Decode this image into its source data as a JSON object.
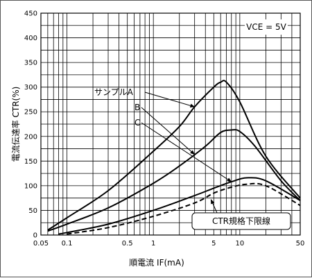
{
  "chart_data": {
    "type": "line",
    "x_scale": "log",
    "xlim": [
      0.05,
      50
    ],
    "ylim": [
      0,
      450
    ],
    "grid": true,
    "xlabel": "順電流 IF(mA)",
    "ylabel": "電流伝達率 CTR(%)",
    "x_ticks": [
      {
        "value": 0.05,
        "label": "0.05"
      },
      {
        "value": 0.1,
        "label": "0.1"
      },
      {
        "value": 0.5,
        "label": "0.5"
      },
      {
        "value": 1,
        "label": "1"
      },
      {
        "value": 5,
        "label": "5"
      },
      {
        "value": 10,
        "label": "10"
      },
      {
        "value": 50,
        "label": "50"
      }
    ],
    "y_ticks": [
      {
        "value": 0,
        "label": "0"
      },
      {
        "value": 50,
        "label": "50"
      },
      {
        "value": 100,
        "label": "100"
      },
      {
        "value": 150,
        "label": "150"
      },
      {
        "value": 200,
        "label": "200"
      },
      {
        "value": 250,
        "label": "250"
      },
      {
        "value": 300,
        "label": "300"
      },
      {
        "value": 350,
        "label": "350"
      },
      {
        "value": 400,
        "label": "400"
      },
      {
        "value": 450,
        "label": "450"
      }
    ],
    "condition_label": "VCE = 5V",
    "series": [
      {
        "name": "サンプルA",
        "style": "solid",
        "x": [
          0.06,
          0.1,
          0.3,
          1,
          2,
          3,
          5,
          6,
          7,
          10,
          20,
          50
        ],
        "y": [
          10,
          35,
          90,
          170,
          220,
          260,
          300,
          310,
          310,
          270,
          160,
          75
        ]
      },
      {
        "name": "B",
        "style": "solid",
        "x": [
          0.06,
          0.1,
          0.3,
          1,
          2,
          4,
          6,
          8,
          10,
          15,
          30,
          50
        ],
        "y": [
          8,
          22,
          55,
          105,
          140,
          180,
          208,
          213,
          210,
          180,
          110,
          70
        ]
      },
      {
        "name": "C",
        "style": "solid",
        "x": [
          0.08,
          0.1,
          0.3,
          1,
          3,
          5,
          8,
          12,
          20,
          50
        ],
        "y": [
          2,
          5,
          22,
          50,
          80,
          95,
          108,
          116,
          110,
          70
        ]
      },
      {
        "name": "CTR規格下限線",
        "style": "dashed",
        "x": [
          0.1,
          0.3,
          1,
          3,
          5,
          8,
          12,
          20,
          50
        ],
        "y": [
          2,
          15,
          38,
          65,
          85,
          97,
          103,
          100,
          60
        ]
      }
    ],
    "annotations": [
      {
        "text": "サンプルA",
        "series": 0,
        "at_x": 3.0
      },
      {
        "text": "B",
        "series": 1,
        "at_x": 3.0
      },
      {
        "text": "C",
        "series": 2,
        "at_x": 8.0
      },
      {
        "text": "CTR規格下限線",
        "series": 3,
        "at_x": 4.0
      }
    ]
  }
}
